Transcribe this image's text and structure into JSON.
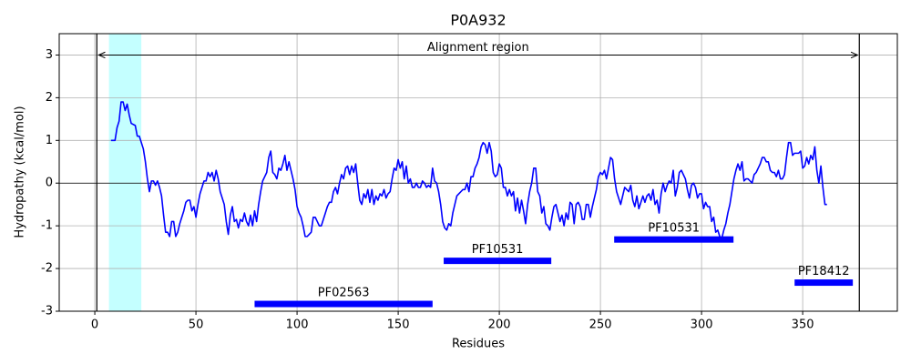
{
  "chart_data": {
    "type": "line",
    "title": "P0A932",
    "x_label": "Residues",
    "y_label": "Hydropathy (kcal/mol)",
    "xlim": [
      -17.6,
      396.8
    ],
    "ylim": [
      -3,
      3.5
    ],
    "xticks": [
      0,
      50,
      100,
      150,
      200,
      250,
      300,
      350
    ],
    "yticks": [
      -3,
      -2,
      -1,
      0,
      1,
      2,
      3
    ],
    "grid": true,
    "hline": 0,
    "highlight": {
      "range": [
        7,
        23
      ],
      "color": "#c4ffff"
    },
    "vlines": [
      1,
      378
    ],
    "annotation": {
      "text": "Alignment region",
      "y": 3
    },
    "domains": [
      {
        "name": "PF02563",
        "start": 79,
        "end": 167,
        "y": -2.83
      },
      {
        "name": "PF10531",
        "start": 172.5,
        "end": 225.7,
        "y": -1.82
      },
      {
        "name": "PF10531",
        "start": 256.8,
        "end": 315.8,
        "y": -1.32
      },
      {
        "name": "PF18412",
        "start": 346,
        "end": 374.8,
        "y": -2.33
      }
    ],
    "domain_color": "#0000ff",
    "x": [
      8,
      10,
      11,
      12,
      13,
      14,
      15,
      16,
      17,
      18,
      20,
      21,
      22,
      24,
      25,
      26,
      27,
      28,
      29,
      30,
      31,
      32,
      33,
      34,
      35,
      36,
      37,
      38,
      39,
      40,
      41,
      42,
      43,
      44,
      45,
      46,
      47,
      48,
      49,
      50,
      51,
      52,
      53,
      54,
      55,
      56,
      57,
      58,
      59,
      60,
      61,
      62,
      63,
      64,
      65,
      66,
      67,
      68,
      69,
      70,
      71,
      72,
      73,
      74,
      75,
      76,
      77,
      78,
      79,
      80,
      81,
      82,
      83,
      84,
      85,
      86,
      87,
      88,
      89,
      90,
      91,
      92,
      93,
      94,
      95,
      96,
      97,
      98,
      99,
      100,
      101,
      102,
      103,
      104,
      105,
      106,
      107,
      108,
      109,
      110,
      111,
      112,
      113,
      114,
      115,
      116,
      117,
      118,
      119,
      120,
      121,
      122,
      123,
      124,
      125,
      126,
      127,
      128,
      129,
      130,
      131,
      132,
      133,
      134,
      135,
      136,
      137,
      138,
      139,
      140,
      141,
      142,
      143,
      144,
      145,
      146,
      147,
      148,
      149,
      150,
      151,
      152,
      153,
      154,
      155,
      156,
      157,
      158,
      159,
      160,
      161,
      162,
      163,
      164,
      165,
      166,
      167,
      168,
      169,
      170,
      171,
      172,
      173,
      174,
      175,
      176,
      177,
      178,
      179,
      180,
      181,
      182,
      183,
      184,
      185,
      186,
      187,
      188,
      189,
      190,
      191,
      192,
      193,
      194,
      195,
      196,
      197,
      198,
      199,
      200,
      201,
      202,
      203,
      204,
      205,
      206,
      207,
      208,
      209,
      210,
      211,
      212,
      213,
      214,
      215,
      216,
      217,
      218,
      219,
      220,
      221,
      222,
      223,
      224,
      225,
      226,
      227,
      228,
      229,
      230,
      231,
      232,
      233,
      234,
      235,
      236,
      237,
      238,
      239,
      240,
      241,
      242,
      243,
      244,
      245,
      246,
      247,
      248,
      249,
      250,
      251,
      252,
      253,
      254,
      255,
      256,
      257,
      258,
      259,
      260,
      261,
      262,
      263,
      264,
      265,
      266,
      267,
      268,
      269,
      270,
      271,
      272,
      273,
      274,
      275,
      276,
      277,
      278,
      279,
      280,
      281,
      282,
      283,
      284,
      285,
      286,
      287,
      288,
      289,
      290,
      291,
      292,
      293,
      294,
      295,
      296,
      297,
      298,
      299,
      300,
      301,
      302,
      303,
      304,
      305,
      306,
      307,
      308,
      309,
      310,
      311,
      312,
      313,
      314,
      315,
      316,
      317,
      318,
      319,
      320,
      321,
      322,
      323,
      324,
      325,
      326,
      327,
      328,
      329,
      330,
      331,
      332,
      333,
      334,
      335,
      336,
      337,
      338,
      339,
      340,
      341,
      342,
      343,
      344,
      345,
      346,
      347,
      348,
      349,
      350,
      351,
      352,
      353,
      354,
      355,
      356,
      357,
      358,
      359,
      360,
      361,
      362
    ],
    "series": [
      {
        "color": "#0000ff",
        "values": [
          1.0,
          1.0,
          1.3,
          1.45,
          1.9,
          1.9,
          1.7,
          1.85,
          1.6,
          1.4,
          1.35,
          1.1,
          1.1,
          0.8,
          0.5,
          0.1,
          -0.2,
          0.05,
          0.05,
          -0.05,
          0.05,
          -0.1,
          -0.3,
          -0.75,
          -1.15,
          -1.15,
          -1.25,
          -0.9,
          -0.9,
          -1.25,
          -1.15,
          -0.95,
          -0.8,
          -0.65,
          -0.45,
          -0.4,
          -0.4,
          -0.65,
          -0.55,
          -0.8,
          -0.5,
          -0.25,
          -0.1,
          0.05,
          0.05,
          0.25,
          0.15,
          0.25,
          0.05,
          0.3,
          0.1,
          -0.2,
          -0.35,
          -0.5,
          -0.9,
          -1.2,
          -0.75,
          -0.55,
          -0.9,
          -0.85,
          -1.05,
          -0.85,
          -0.9,
          -0.7,
          -0.9,
          -1.0,
          -0.75,
          -1.0,
          -0.65,
          -0.9,
          -0.5,
          -0.2,
          0.05,
          0.15,
          0.25,
          0.6,
          0.75,
          0.25,
          0.2,
          0.1,
          0.35,
          0.3,
          0.45,
          0.65,
          0.3,
          0.5,
          0.3,
          0.1,
          -0.15,
          -0.55,
          -0.7,
          -0.8,
          -1.0,
          -1.25,
          -1.25,
          -1.2,
          -1.15,
          -0.8,
          -0.8,
          -0.9,
          -1.0,
          -1.0,
          -0.85,
          -0.7,
          -0.55,
          -0.45,
          -0.45,
          -0.2,
          -0.1,
          -0.25,
          0.0,
          0.2,
          0.1,
          0.35,
          0.4,
          0.2,
          0.4,
          0.25,
          0.45,
          0.0,
          -0.4,
          -0.5,
          -0.25,
          -0.35,
          -0.15,
          -0.45,
          -0.15,
          -0.5,
          -0.3,
          -0.4,
          -0.25,
          -0.3,
          -0.15,
          -0.35,
          -0.25,
          -0.2,
          0.1,
          0.35,
          0.3,
          0.55,
          0.35,
          0.5,
          0.1,
          0.4,
          0.0,
          0.1,
          -0.1,
          -0.1,
          0.0,
          -0.1,
          -0.1,
          0.05,
          0.0,
          -0.1,
          -0.05,
          -0.1,
          0.35,
          0.05,
          0.0,
          -0.2,
          -0.5,
          -0.9,
          -1.05,
          -1.1,
          -0.95,
          -1.0,
          -0.7,
          -0.5,
          -0.3,
          -0.25,
          -0.2,
          -0.15,
          -0.15,
          0.0,
          -0.2,
          0.15,
          0.15,
          0.35,
          0.45,
          0.6,
          0.85,
          0.95,
          0.9,
          0.7,
          0.95,
          0.75,
          0.25,
          0.15,
          0.2,
          0.45,
          0.35,
          -0.1,
          -0.1,
          -0.3,
          -0.15,
          -0.3,
          -0.2,
          -0.65,
          -0.35,
          -0.7,
          -0.4,
          -0.65,
          -0.95,
          -0.5,
          -0.2,
          0.0,
          0.35,
          0.35,
          -0.2,
          -0.3,
          -0.7,
          -0.55,
          -0.95,
          -1.0,
          -1.1,
          -0.8,
          -0.55,
          -0.5,
          -0.7,
          -0.9,
          -0.75,
          -1.0,
          -0.7,
          -0.85,
          -0.45,
          -0.5,
          -0.95,
          -0.5,
          -0.45,
          -0.55,
          -0.85,
          -0.85,
          -0.5,
          -0.5,
          -0.8,
          -0.55,
          -0.35,
          -0.15,
          0.15,
          0.25,
          0.2,
          0.3,
          0.1,
          0.35,
          0.6,
          0.55,
          0.1,
          -0.2,
          -0.35,
          -0.5,
          -0.3,
          -0.1,
          -0.15,
          -0.2,
          -0.05,
          -0.4,
          -0.55,
          -0.3,
          -0.6,
          -0.45,
          -0.3,
          -0.45,
          -0.3,
          -0.25,
          -0.4,
          -0.15,
          -0.5,
          -0.4,
          -0.7,
          -0.25,
          0.0,
          -0.2,
          -0.05,
          0.05,
          0.0,
          0.3,
          -0.3,
          -0.1,
          0.25,
          0.3,
          0.2,
          0.1,
          -0.15,
          -0.35,
          -0.05,
          0.0,
          -0.1,
          -0.35,
          -0.25,
          -0.25,
          -0.6,
          -0.45,
          -0.55,
          -0.55,
          -0.9,
          -0.8,
          -1.15,
          -1.1,
          -1.25,
          -1.3,
          -1.1,
          -0.95,
          -0.7,
          -0.5,
          -0.2,
          0.1,
          0.3,
          0.45,
          0.3,
          0.5,
          0.05,
          0.1,
          0.1,
          0.05,
          0.0,
          0.2,
          0.25,
          0.35,
          0.45,
          0.6,
          0.6,
          0.5,
          0.5,
          0.3,
          0.25,
          0.25,
          0.15,
          0.3,
          0.1,
          0.1,
          0.2,
          0.6,
          0.95,
          0.95,
          0.65,
          0.7,
          0.7,
          0.7,
          0.75,
          0.35,
          0.4,
          0.6,
          0.45,
          0.65,
          0.55,
          0.85,
          0.3,
          0.0,
          0.4,
          -0.1,
          -0.5,
          -0.5
        ]
      }
    ]
  }
}
